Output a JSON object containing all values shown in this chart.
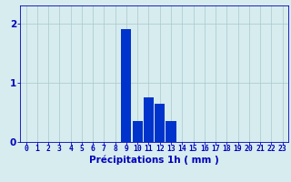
{
  "hours": [
    0,
    1,
    2,
    3,
    4,
    5,
    6,
    7,
    8,
    9,
    10,
    11,
    12,
    13,
    14,
    15,
    16,
    17,
    18,
    19,
    20,
    21,
    22,
    23
  ],
  "values": [
    0,
    0,
    0,
    0,
    0,
    0,
    0,
    0,
    0,
    1.9,
    0.35,
    0.75,
    0.65,
    0.35,
    0,
    0,
    0,
    0,
    0,
    0,
    0,
    0,
    0,
    0
  ],
  "bar_color": "#0033cc",
  "background_color": "#d6ecee",
  "grid_color": "#aac8cc",
  "axis_color": "#0000bb",
  "xlabel": "Précipitations 1h ( mm )",
  "xlabel_fontsize": 7.5,
  "tick_fontsize": 5.8,
  "ytick_fontsize": 7.5,
  "ylabel_ticks": [
    0,
    1,
    2
  ],
  "ylim": [
    0,
    2.3
  ],
  "xlim": [
    -0.5,
    23.5
  ]
}
